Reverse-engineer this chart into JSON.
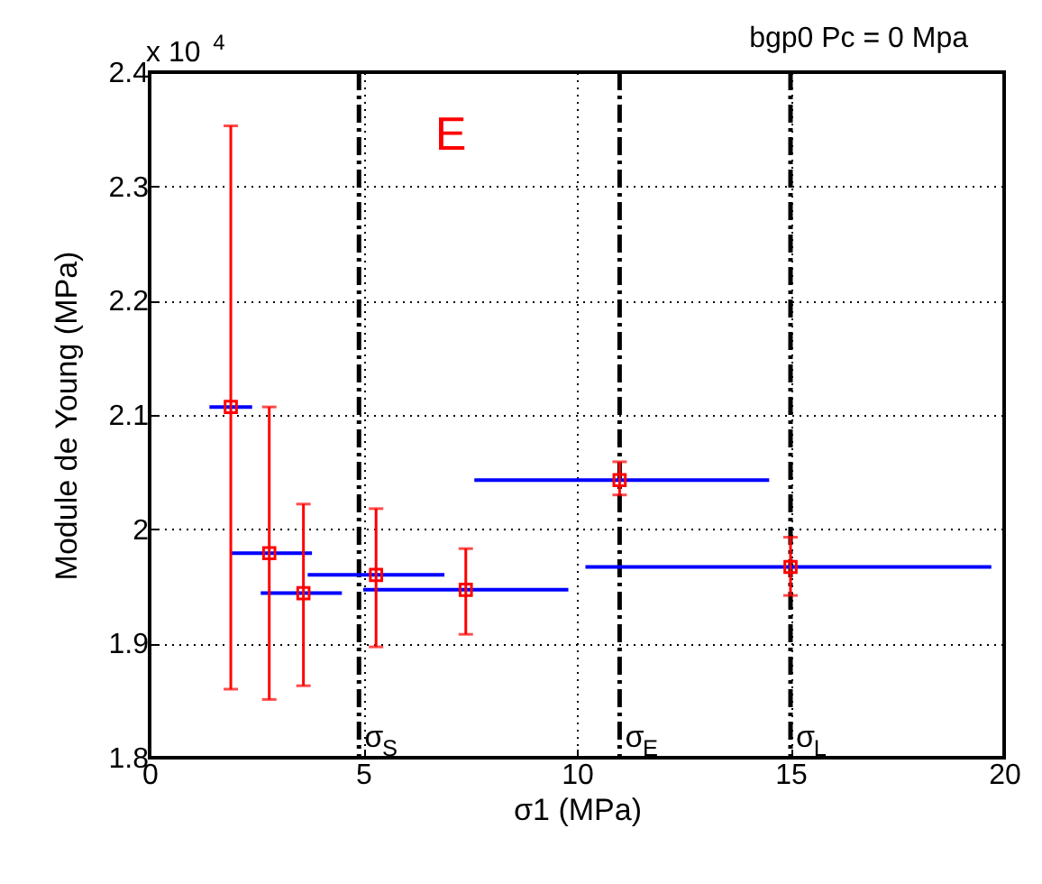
{
  "chart_data": {
    "type": "scatter",
    "title": "bgp0 Pc = 0 Mpa",
    "xlabel": "σ1 (MPa)",
    "ylabel": "Module de Young (MPa)",
    "annotations": [
      "x 10$^{4}$",
      "E"
    ],
    "x": [
      1.9,
      2.8,
      3.6,
      5.3,
      7.4,
      11.0,
      15.0
    ],
    "series": [
      {
        "color": "#ff0000",
        "values": [
          2.107,
          1.979,
          1.944,
          1.96,
          1.947,
          2.043,
          1.967
        ],
        "errors": [
          [
            1.86,
            2.353
          ],
          [
            1.851,
            2.107
          ],
          [
            1.863,
            2.022
          ],
          [
            1.897,
            2.018
          ],
          [
            1.908,
            1.983
          ],
          [
            2.03,
            2.059
          ],
          [
            1.942,
            1.993
          ]
        ],
        "xerrors": [
          [
            1.4,
            2.4
          ],
          [
            1.9,
            3.8
          ],
          [
            2.6,
            4.5
          ],
          [
            3.7,
            6.9
          ],
          [
            5.0,
            9.8
          ],
          [
            7.6,
            14.5
          ],
          [
            10.2,
            19.7
          ]
        ]
      }
    ],
    "xlim": [
      0,
      20
    ],
    "xticks": [
      0,
      5,
      10,
      15,
      20
    ],
    "ylim": [
      1.8,
      2.4
    ],
    "yticks": [
      1.8,
      1.9,
      2,
      2.1,
      2.2,
      2.3,
      2.4
    ],
    "grid": true,
    "marker": "square",
    "ref_lines": [
      {
        "axis": "x",
        "value": 4.9,
        "label": "σ$_{S}$",
        "color": "#000000",
        "line_style": "dashed"
      },
      {
        "axis": "x",
        "value": 11,
        "label": "σ$_{E}$",
        "color": "#000000",
        "line_style": "dashed"
      },
      {
        "axis": "x",
        "value": 15,
        "label": "σ$_{L}$",
        "color": "#000000",
        "line_style": "dashed"
      }
    ]
  }
}
